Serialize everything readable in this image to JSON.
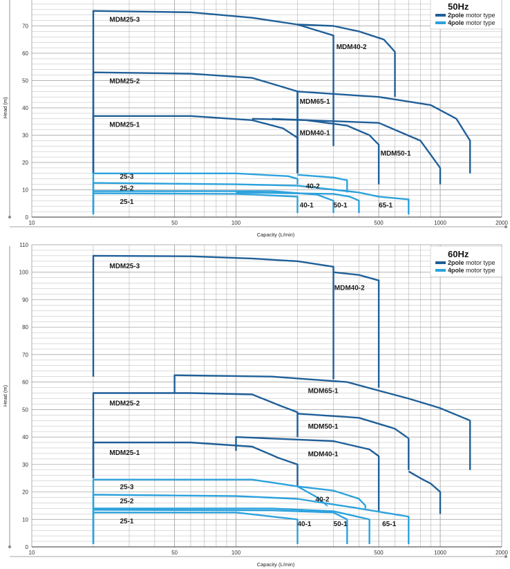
{
  "colors": {
    "two_pole": "#1f5f98",
    "four_pole": "#2ca2dc",
    "grid": "#9a9a9a",
    "frame": "#333333"
  },
  "chart_data": [
    {
      "type": "line",
      "freq": "50Hz",
      "xscale": "log",
      "xlim": [
        10,
        2000
      ],
      "ylim": [
        0,
        80
      ],
      "xticks": [
        10,
        50,
        100,
        500,
        1000,
        2000
      ],
      "xtick_labels": [
        "10",
        "50",
        "100",
        "500",
        "1000",
        "2000"
      ],
      "yticks": [
        0,
        10,
        20,
        30,
        40,
        50,
        60,
        70
      ],
      "ytick_labels": [
        "0",
        "10",
        "20",
        "30",
        "40",
        "50",
        "60",
        "70"
      ],
      "xlabel": "Capacity (L/min)",
      "ylabel": "Head (m)",
      "legend": [
        {
          "bold": "2pole",
          "text": " motor type",
          "key": "two_pole"
        },
        {
          "bold": "4pole",
          "text": " motor type",
          "key": "four_pole"
        }
      ],
      "series": [
        {
          "name": "MDM25-3",
          "pole": 2,
          "curve": [
            [
              20,
              16
            ],
            [
              20,
              75.5
            ],
            [
              60,
              75
            ],
            [
              120,
              73
            ],
            [
              200,
              70.5
            ],
            [
              300,
              66.5
            ]
          ],
          "end_drop": 26
        },
        {
          "name": "MDM40-2",
          "pole": 2,
          "curve": [
            [
              200,
              70.5
            ],
            [
              300,
              70
            ],
            [
              400,
              68
            ],
            [
              530,
              65
            ],
            [
              600,
              60.5
            ]
          ],
          "end_drop": 44
        },
        {
          "name": "MDM25-2",
          "pole": 2,
          "curve": [
            [
              20,
              16
            ],
            [
              20,
              53
            ],
            [
              60,
              52.5
            ],
            [
              120,
              51
            ],
            [
              200,
              46
            ]
          ],
          "end_drop": 16
        },
        {
          "name": "MDM65-1",
          "pole": 2,
          "curve": [
            [
              200,
              16
            ],
            [
              200,
              46
            ],
            [
              500,
              44
            ],
            [
              900,
              41
            ],
            [
              1200,
              36
            ],
            [
              1400,
              28
            ]
          ],
          "end_drop": 16
        },
        {
          "name": "MDM25-1",
          "pole": 2,
          "curve": [
            [
              20,
              16
            ],
            [
              20,
              37
            ],
            [
              60,
              37
            ],
            [
              120,
              35.5
            ],
            [
              170,
              32.5
            ],
            [
              200,
              29
            ]
          ],
          "end_drop": 16
        },
        {
          "name": "MDM40-1",
          "pole": 2,
          "curve": [
            [
              120,
              36
            ],
            [
              220,
              35.5
            ],
            [
              350,
              33.5
            ],
            [
              450,
              30
            ],
            [
              500,
              26.5
            ]
          ],
          "end_drop": 12
        },
        {
          "name": "MDM50-1",
          "pole": 2,
          "curve": [
            [
              150,
              36
            ],
            [
              500,
              34.5
            ],
            [
              800,
              28
            ],
            [
              1000,
              18
            ]
          ],
          "end_drop": 12
        },
        {
          "name": "25-3",
          "pole": 4,
          "curve": [
            [
              20,
              1
            ],
            [
              20,
              16
            ],
            [
              100,
              16
            ],
            [
              180,
              15
            ],
            [
              200,
              14
            ]
          ],
          "end_drop": 12
        },
        {
          "name": "40-2",
          "pole": 4,
          "curve": [
            [
              200,
              15.5
            ],
            [
              300,
              14.5
            ],
            [
              350,
              13.5
            ]
          ],
          "end_drop": 9
        },
        {
          "name": "25-2",
          "pole": 4,
          "curve": [
            [
              20,
              2
            ],
            [
              20,
              12.5
            ],
            [
              100,
              12
            ],
            [
              200,
              11.5
            ],
            [
              400,
              9
            ],
            [
              500,
              7.5
            ],
            [
              700,
              6.5
            ]
          ],
          "end_drop": 1
        },
        {
          "name": "25-1",
          "pole": 4,
          "curve": [
            [
              20,
              1
            ],
            [
              20,
              8.7
            ],
            [
              100,
              8.5
            ],
            [
              200,
              7.5
            ]
          ],
          "end_drop": 1.5
        },
        {
          "name": "40-1",
          "pole": 4,
          "curve": [
            [
              20,
              9.5
            ],
            [
              150,
              9.5
            ],
            [
              250,
              8.2
            ],
            [
              300,
              6
            ]
          ],
          "end_drop": 1.5
        },
        {
          "name": "50-1",
          "pole": 4,
          "curve": [
            [
              100,
              9
            ],
            [
              300,
              8.5
            ],
            [
              360,
              7.5
            ],
            [
              400,
              6
            ]
          ],
          "end_drop": 1.5
        }
      ],
      "labels": [
        {
          "text": "MDM25-3",
          "x": 24,
          "y": 71.5
        },
        {
          "text": "MDM40-2",
          "x": 310,
          "y": 61.5
        },
        {
          "text": "MDM25-2",
          "x": 24,
          "y": 49
        },
        {
          "text": "MDM65-1",
          "x": 205,
          "y": 41.5
        },
        {
          "text": "MDM25-1",
          "x": 24,
          "y": 33
        },
        {
          "text": "MDM40-1",
          "x": 205,
          "y": 30
        },
        {
          "text": "MDM50-1",
          "x": 510,
          "y": 22.5
        },
        {
          "text": "25-3",
          "x": 27,
          "y": 14
        },
        {
          "text": "40-2",
          "x": 220,
          "y": 10.5
        },
        {
          "text": "25-2",
          "x": 27,
          "y": 9.8
        },
        {
          "text": "25-1",
          "x": 27,
          "y": 4.8
        },
        {
          "text": "40-1",
          "x": 205,
          "y": 3.5
        },
        {
          "text": "50-1",
          "x": 300,
          "y": 3.5
        },
        {
          "text": "65-1",
          "x": 500,
          "y": 3.5
        }
      ]
    },
    {
      "type": "line",
      "freq": "60Hz",
      "xscale": "log",
      "xlim": [
        10,
        2000
      ],
      "ylim": [
        0,
        110
      ],
      "xticks": [
        10,
        50,
        100,
        500,
        1000,
        2000
      ],
      "xtick_labels": [
        "10",
        "50",
        "100",
        "500",
        "1000",
        "2000"
      ],
      "yticks": [
        0,
        10,
        20,
        30,
        40,
        50,
        60,
        70,
        80,
        90,
        100,
        110
      ],
      "ytick_labels": [
        "0",
        "10",
        "20",
        "30",
        "40",
        "50",
        "60",
        "70",
        "80",
        "90",
        "100",
        "110"
      ],
      "xlabel": "Capacity (L/min)",
      "ylabel": "Head (m)",
      "legend": [
        {
          "bold": "2pole",
          "text": " motor type",
          "key": "two_pole"
        },
        {
          "bold": "4pole",
          "text": " motor type",
          "key": "four_pole"
        }
      ],
      "series": [
        {
          "name": "MDM25-3",
          "pole": 2,
          "curve": [
            [
              20,
              62
            ],
            [
              20,
              106
            ],
            [
              60,
              105.8
            ],
            [
              120,
              105
            ],
            [
              200,
              104
            ],
            [
              300,
              102
            ]
          ],
          "end_drop": 61
        },
        {
          "name": "MDM40-2",
          "pole": 2,
          "curve": [
            [
              300,
              100
            ],
            [
              400,
              99
            ],
            [
              500,
              97
            ]
          ],
          "end_drop": 58
        },
        {
          "name": "MDM65-1",
          "pole": 2,
          "curve": [
            [
              50,
              56
            ],
            [
              50,
              62.5
            ],
            [
              150,
              62
            ],
            [
              350,
              60
            ],
            [
              700,
              54
            ],
            [
              1000,
              50.5
            ],
            [
              1400,
              46
            ]
          ],
          "end_drop": 28
        },
        {
          "name": "MDM25-2",
          "pole": 2,
          "curve": [
            [
              20,
              25
            ],
            [
              20,
              56
            ],
            [
              60,
              56
            ],
            [
              120,
              55.5
            ],
            [
              170,
              51
            ],
            [
              200,
              49
            ]
          ],
          "end_drop": 40
        },
        {
          "name": "MDM50-1",
          "pole": 2,
          "curve": [
            [
              200,
              48.5
            ],
            [
              400,
              47
            ],
            [
              600,
              43
            ],
            [
              700,
              39.5
            ]
          ],
          "end_drop": 28
        },
        {
          "name": "MDM25-1",
          "pole": 2,
          "curve": [
            [
              20,
              25
            ],
            [
              20,
              38
            ],
            [
              60,
              38
            ],
            [
              120,
              36.5
            ],
            [
              160,
              32.5
            ],
            [
              200,
              30
            ]
          ],
          "end_drop": 22
        },
        {
          "name": "MDM40-1",
          "pole": 2,
          "curve": [
            [
              100,
              35
            ],
            [
              100,
              40
            ],
            [
              300,
              38.5
            ],
            [
              450,
              35.5
            ],
            [
              500,
              33
            ]
          ],
          "end_drop": 13
        },
        {
          "name": "MDM40-1-ext",
          "pole": 2,
          "curve": [
            [
              700,
              27.5
            ],
            [
              800,
              25
            ],
            [
              900,
              23
            ],
            [
              1000,
              20
            ]
          ],
          "end_drop": 12
        },
        {
          "name": "25-3",
          "pole": 4,
          "curve": [
            [
              20,
              1
            ],
            [
              20,
              24.5
            ],
            [
              120,
              24.5
            ],
            [
              200,
              22
            ],
            [
              250,
              18
            ],
            [
              280,
              15
            ]
          ],
          "end_drop": 15
        },
        {
          "name": "40-2",
          "pole": 4,
          "curve": [
            [
              200,
              22
            ],
            [
              300,
              20.5
            ],
            [
              400,
              17.5
            ],
            [
              430,
              15
            ]
          ],
          "end_drop": 14
        },
        {
          "name": "25-2",
          "pole": 4,
          "curve": [
            [
              20,
              2
            ],
            [
              20,
              19
            ],
            [
              100,
              18.5
            ],
            [
              200,
              17.5
            ],
            [
              400,
              14
            ],
            [
              700,
              11
            ]
          ],
          "end_drop": 1
        },
        {
          "name": "25-1",
          "pole": 4,
          "curve": [
            [
              20,
              1
            ],
            [
              20,
              12.5
            ],
            [
              100,
              12.5
            ],
            [
              200,
              10
            ]
          ],
          "end_drop": 1
        },
        {
          "name": "40-1",
          "pole": 4,
          "curve": [
            [
              20,
              13.5
            ],
            [
              150,
              13.3
            ],
            [
              300,
              12.5
            ],
            [
              350,
              10
            ]
          ],
          "end_drop": 1
        },
        {
          "name": "50-1",
          "pole": 4,
          "curve": [
            [
              20,
              14
            ],
            [
              150,
              14
            ],
            [
              300,
              13
            ],
            [
              450,
              10
            ]
          ],
          "end_drop": 1
        }
      ],
      "labels": [
        {
          "text": "MDM25-3",
          "x": 24,
          "y": 101.5
        },
        {
          "text": "MDM40-2",
          "x": 303,
          "y": 93.5
        },
        {
          "text": "MDM65-1",
          "x": 225,
          "y": 56
        },
        {
          "text": "MDM25-2",
          "x": 24,
          "y": 51.5
        },
        {
          "text": "MDM50-1",
          "x": 225,
          "y": 43
        },
        {
          "text": "MDM25-1",
          "x": 24,
          "y": 33.5
        },
        {
          "text": "MDM40-1",
          "x": 225,
          "y": 33
        },
        {
          "text": "25-3",
          "x": 27,
          "y": 21
        },
        {
          "text": "40-2",
          "x": 245,
          "y": 16.5
        },
        {
          "text": "25-2",
          "x": 27,
          "y": 15.8
        },
        {
          "text": "25-1",
          "x": 27,
          "y": 8.5
        },
        {
          "text": "40-1",
          "x": 200,
          "y": 7.5
        },
        {
          "text": "50-1",
          "x": 300,
          "y": 7.5
        },
        {
          "text": "65-1",
          "x": 520,
          "y": 7.5
        }
      ]
    }
  ]
}
